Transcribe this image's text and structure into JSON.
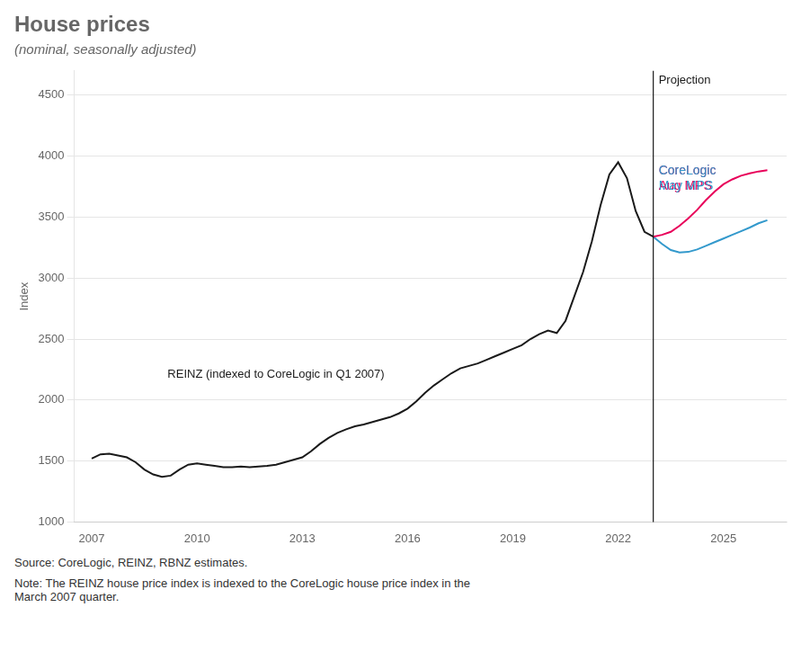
{
  "chart_data": {
    "type": "line",
    "title": "House prices",
    "subtitle": "(nominal, seasonally adjusted)",
    "y_label": "Index",
    "source": "Source: CoreLogic, REINZ, RBNZ estimates.",
    "note": "Note: The REINZ house price index is indexed to the CoreLogic house price index in the\nMarch 2007 quarter.",
    "xlim": [
      2006.5,
      2026.8
    ],
    "ylim": [
      1000,
      4700
    ],
    "xticks": [
      2007,
      2010,
      2013,
      2016,
      2019,
      2022,
      2025
    ],
    "yticks": [
      1000,
      1500,
      2000,
      2500,
      3000,
      3500,
      4000,
      4500
    ],
    "grid": true,
    "vline": {
      "x": 2023.0,
      "label": "Projection",
      "color": "#1a1a1a"
    },
    "series": [
      {
        "name": "REINZ (indexed to CoreLogic in Q1 2007)",
        "color": "#1a1a1a",
        "x": [
          2007.0,
          2007.25,
          2007.5,
          2007.75,
          2008.0,
          2008.25,
          2008.5,
          2008.75,
          2009.0,
          2009.25,
          2009.5,
          2009.75,
          2010.0,
          2010.25,
          2010.5,
          2010.75,
          2011.0,
          2011.25,
          2011.5,
          2011.75,
          2012.0,
          2012.25,
          2012.5,
          2012.75,
          2013.0,
          2013.25,
          2013.5,
          2013.75,
          2014.0,
          2014.25,
          2014.5,
          2014.75,
          2015.0,
          2015.25,
          2015.5,
          2015.75,
          2016.0,
          2016.25,
          2016.5,
          2016.75,
          2017.0,
          2017.25,
          2017.5,
          2017.75,
          2018.0,
          2018.25,
          2018.5,
          2018.75,
          2019.0,
          2019.25,
          2019.5,
          2019.75,
          2020.0,
          2020.25,
          2020.5,
          2020.75,
          2021.0,
          2021.25,
          2021.5,
          2021.75,
          2022.0,
          2022.25,
          2022.5,
          2022.75,
          2023.0
        ],
        "values": [
          1520,
          1555,
          1560,
          1545,
          1530,
          1490,
          1430,
          1390,
          1370,
          1380,
          1430,
          1470,
          1480,
          1470,
          1460,
          1450,
          1450,
          1455,
          1450,
          1455,
          1460,
          1470,
          1490,
          1510,
          1530,
          1580,
          1640,
          1690,
          1730,
          1760,
          1785,
          1800,
          1820,
          1840,
          1860,
          1890,
          1930,
          1990,
          2060,
          2120,
          2170,
          2220,
          2260,
          2280,
          2300,
          2330,
          2360,
          2390,
          2420,
          2450,
          2500,
          2540,
          2570,
          2550,
          2650,
          2850,
          3050,
          3300,
          3600,
          3850,
          3950,
          3820,
          3550,
          3380,
          3340
        ]
      },
      {
        "name": "CoreLogic Aug MPS",
        "color": "#e8005a",
        "x": [
          2023.0,
          2023.25,
          2023.5,
          2023.75,
          2024.0,
          2024.25,
          2024.5,
          2024.75,
          2025.0,
          2025.25,
          2025.5,
          2025.75,
          2026.0,
          2026.25
        ],
        "values": [
          3340,
          3355,
          3380,
          3430,
          3490,
          3560,
          3640,
          3710,
          3770,
          3810,
          3840,
          3860,
          3875,
          3885
        ]
      },
      {
        "name": "CoreLogic May MPS",
        "color": "#3399cc",
        "x": [
          2023.0,
          2023.25,
          2023.5,
          2023.75,
          2024.0,
          2024.25,
          2024.5,
          2024.75,
          2025.0,
          2025.25,
          2025.5,
          2025.75,
          2026.0,
          2026.25
        ],
        "values": [
          3340,
          3280,
          3230,
          3210,
          3215,
          3235,
          3265,
          3295,
          3325,
          3355,
          3385,
          3415,
          3450,
          3475
        ]
      }
    ]
  }
}
